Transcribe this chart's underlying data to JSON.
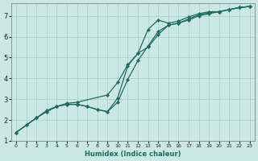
{
  "xlabel": "Humidex (Indice chaleur)",
  "xlim": [
    -0.5,
    23.5
  ],
  "ylim": [
    1,
    7.6
  ],
  "xticks": [
    0,
    1,
    2,
    3,
    4,
    5,
    6,
    7,
    8,
    9,
    10,
    11,
    12,
    13,
    14,
    15,
    16,
    17,
    18,
    19,
    20,
    21,
    22,
    23
  ],
  "yticks": [
    1,
    2,
    3,
    4,
    5,
    6,
    7
  ],
  "background_color": "#cce8e4",
  "grid_color": "#aaceca",
  "line_color": "#1a6e62",
  "line1_x": [
    0,
    1,
    2,
    3,
    4,
    5,
    6,
    7,
    8,
    9,
    10,
    11,
    12,
    13,
    14,
    15,
    16,
    17,
    18,
    19,
    20,
    21,
    22,
    23
  ],
  "line1_y": [
    1.4,
    1.75,
    2.1,
    2.4,
    2.65,
    2.75,
    2.75,
    2.65,
    2.5,
    2.4,
    3.05,
    4.6,
    5.2,
    6.35,
    6.8,
    6.65,
    6.75,
    6.95,
    7.1,
    7.2,
    7.2,
    7.3,
    7.4,
    7.45
  ],
  "line2_x": [
    0,
    2,
    3,
    4,
    5,
    6,
    9,
    10,
    11,
    12,
    13,
    14,
    15,
    16,
    17,
    18,
    19,
    20,
    21,
    22,
    23
  ],
  "line2_y": [
    1.4,
    2.1,
    2.45,
    2.65,
    2.8,
    2.85,
    3.2,
    3.8,
    4.65,
    5.2,
    5.5,
    6.1,
    6.55,
    6.65,
    6.8,
    7.0,
    7.1,
    7.2,
    7.3,
    7.4,
    7.45
  ],
  "line3_x": [
    0,
    1,
    2,
    3,
    4,
    5,
    6,
    7,
    8,
    9,
    10,
    11,
    12,
    13,
    14,
    15,
    16,
    17,
    18,
    19,
    20,
    21,
    22,
    23
  ],
  "line3_y": [
    1.4,
    1.75,
    2.1,
    2.4,
    2.65,
    2.75,
    2.75,
    2.65,
    2.5,
    2.4,
    2.85,
    3.95,
    4.85,
    5.55,
    6.25,
    6.55,
    6.65,
    6.85,
    7.05,
    7.15,
    7.2,
    7.3,
    7.4,
    7.45
  ]
}
